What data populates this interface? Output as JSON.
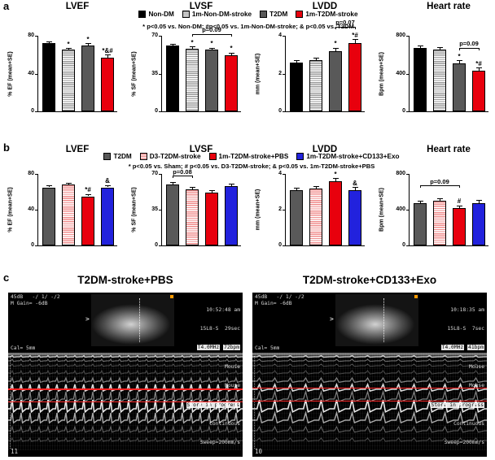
{
  "labels": {
    "a": "a",
    "b": "b",
    "c": "c"
  },
  "panel_a": {
    "legend": [
      {
        "label": "Non-DM",
        "color": "#000000",
        "pattern": "solid"
      },
      {
        "label": "1m-Non-DM-stroke",
        "color": "#9b9b9b",
        "pattern": "hstripe"
      },
      {
        "label": "T2DM",
        "color": "#595959",
        "pattern": "solid"
      },
      {
        "label": "1m-T2DM-stroke",
        "color": "#e8000d",
        "pattern": "solid"
      }
    ],
    "note": "* p<0.05 vs. Non-DM;  #p<0.05 vs. 1m-Non-DM-stroke;  & p<0.05 vs. T2DM"
  },
  "panel_b": {
    "legend": [
      {
        "label": "T2DM",
        "color": "#595959",
        "pattern": "solid"
      },
      {
        "label": "D3-T2DM-stroke",
        "color": "#f08e8e",
        "pattern": "hstripe"
      },
      {
        "label": "1m-T2DM-stroke+PBS",
        "color": "#e8000d",
        "pattern": "solid"
      },
      {
        "label": "1m-T2DM-stroke+CD133+Exo",
        "color": "#2222dd",
        "pattern": "solid"
      }
    ],
    "note": "* p<0.05 vs. Sham;  # p<0.05 vs. D3-T2DM-stroke;  & p<0.05 vs. 1m-T2DM-stroke+PBS"
  },
  "chart_data": [
    {
      "panel": "a",
      "type": "bar",
      "title": "LVEF",
      "ylabel": "% EF (mean+SE)",
      "ylim": [
        0,
        80
      ],
      "yticks": [
        0,
        40,
        80
      ],
      "categories": [
        "Non-DM",
        "1m-Non-DM-stroke",
        "T2DM",
        "1m-T2DM-stroke"
      ],
      "values": [
        72,
        65,
        70,
        57
      ],
      "errors": [
        1.5,
        1.5,
        1.5,
        2.5
      ],
      "marks": [
        "",
        "*",
        "*",
        "*&#"
      ],
      "brackets": []
    },
    {
      "panel": "a",
      "type": "bar",
      "title": "LVSF",
      "ylabel": "% SF (mean+SE)",
      "ylim": [
        0,
        70
      ],
      "yticks": [
        0,
        35,
        70
      ],
      "categories": [
        "Non-DM",
        "1m-Non-DM-stroke",
        "T2DM",
        "1m-T2DM-stroke"
      ],
      "values": [
        61,
        58,
        57,
        52
      ],
      "errors": [
        1,
        1.5,
        1.5,
        2
      ],
      "marks": [
        "",
        "*",
        "*",
        "*"
      ],
      "brackets": [
        {
          "from": 1,
          "to": 3,
          "label": "p=0.09"
        }
      ]
    },
    {
      "panel": "a",
      "type": "bar",
      "title": "LVDD",
      "ylabel": "mm (mean+SE)",
      "ylim": [
        0,
        4
      ],
      "yticks": [
        0,
        2,
        4
      ],
      "categories": [
        "Non-DM",
        "1m-Non-DM-stroke",
        "T2DM",
        "1m-T2DM-stroke"
      ],
      "values": [
        2.6,
        2.7,
        3.2,
        3.6
      ],
      "errors": [
        0.1,
        0.1,
        0.15,
        0.2
      ],
      "marks": [
        "",
        "",
        "*",
        "*#"
      ],
      "brackets": [
        {
          "from": 2,
          "to": 3,
          "label": "p=0.07"
        }
      ]
    },
    {
      "panel": "a",
      "type": "bar",
      "title": "Heart rate",
      "ylabel": "Bpm (mean+SE)",
      "ylim": [
        0,
        800
      ],
      "yticks": [
        0,
        400,
        800
      ],
      "categories": [
        "Non-DM",
        "1m-Non-DM-stroke",
        "T2DM",
        "1m-T2DM-stroke"
      ],
      "values": [
        670,
        650,
        510,
        430
      ],
      "errors": [
        20,
        25,
        25,
        30
      ],
      "marks": [
        "",
        "",
        "*",
        "*#"
      ],
      "brackets": [
        {
          "from": 2,
          "to": 3,
          "label": "p=0.09"
        }
      ]
    },
    {
      "panel": "b",
      "type": "bar",
      "title": "LVEF",
      "ylabel": "% EF (mean+SE)",
      "ylim": [
        0,
        80
      ],
      "yticks": [
        0,
        40,
        80
      ],
      "categories": [
        "T2DM",
        "D3-T2DM-stroke",
        "1m-T2DM-stroke+PBS",
        "1m-T2DM-stroke+CD133+Exo"
      ],
      "values": [
        65,
        68,
        55,
        65
      ],
      "errors": [
        2,
        1.5,
        2,
        2
      ],
      "marks": [
        "",
        "",
        "*#",
        "&"
      ],
      "brackets": []
    },
    {
      "panel": "b",
      "type": "bar",
      "title": "LVSF",
      "ylabel": "% SF (mean+SE)",
      "ylim": [
        0,
        70
      ],
      "yticks": [
        0,
        35,
        70
      ],
      "categories": [
        "T2DM",
        "D3-T2DM-stroke",
        "1m-T2DM-stroke+PBS",
        "1m-T2DM-stroke+CD133+Exo"
      ],
      "values": [
        60,
        55,
        52,
        58
      ],
      "errors": [
        2,
        2,
        2,
        2
      ],
      "marks": [
        "",
        "",
        "",
        ""
      ],
      "brackets": [
        {
          "from": 0,
          "to": 1,
          "label": "p=0.08"
        }
      ]
    },
    {
      "panel": "b",
      "type": "bar",
      "title": "LVDD",
      "ylabel": "mm (mean+SE)",
      "ylim": [
        0,
        4
      ],
      "yticks": [
        0,
        2,
        4
      ],
      "categories": [
        "T2DM",
        "D3-T2DM-stroke",
        "1m-T2DM-stroke+PBS",
        "1m-T2DM-stroke+CD133+Exo"
      ],
      "values": [
        3.1,
        3.2,
        3.6,
        3.1
      ],
      "errors": [
        0.1,
        0.1,
        0.15,
        0.15
      ],
      "marks": [
        "",
        "",
        "*",
        "&"
      ],
      "brackets": []
    },
    {
      "panel": "b",
      "type": "bar",
      "title": "Heart rate",
      "ylabel": "Bpm (mean+SE)",
      "ylim": [
        0,
        800
      ],
      "yticks": [
        0,
        400,
        800
      ],
      "categories": [
        "T2DM",
        "D3-T2DM-stroke",
        "1m-T2DM-stroke+PBS",
        "1m-T2DM-stroke+CD133+Exo"
      ],
      "values": [
        470,
        500,
        420,
        470
      ],
      "errors": [
        25,
        25,
        25,
        35
      ],
      "marks": [
        "",
        "",
        "#",
        ""
      ],
      "brackets": [
        {
          "from": 0,
          "to": 2,
          "label": "p=0.09"
        }
      ]
    }
  ],
  "panel_c": {
    "left": {
      "title": "T2DM-stroke+PBS",
      "gain_line": "45dB   -/ 1/ -/2",
      "mgain_line": "M Gain= -6dB",
      "time": "10:52:48 am",
      "probe": "15L8-S",
      "elapsed": "29sec",
      "freq": "T4.0MHz",
      "bpm": "72bpm",
      "species": "Mouse",
      "species2": "Mouse",
      "store": "Store in progress",
      "mode": "Continuous",
      "sweep": "Sweep=200mm/s",
      "cal": "Cal= 5mm",
      "frame": "11"
    },
    "right": {
      "title": "T2DM-stroke+CD133+Exo",
      "gain_line": "45dB   -/ 1/ -/2",
      "mgain_line": "M Gain= -6dB",
      "time": "10:18:35 am",
      "probe": "15L8-S",
      "elapsed": "7sec",
      "freq": "T4.0MHz",
      "bpm": "41bpm",
      "species": "Mouse",
      "species2": "Mouse",
      "store": "Store in progress",
      "mode": "Continuous",
      "sweep": "Sweep=200mm/s",
      "cal": "Cal= 5mm",
      "frame": "10"
    }
  }
}
